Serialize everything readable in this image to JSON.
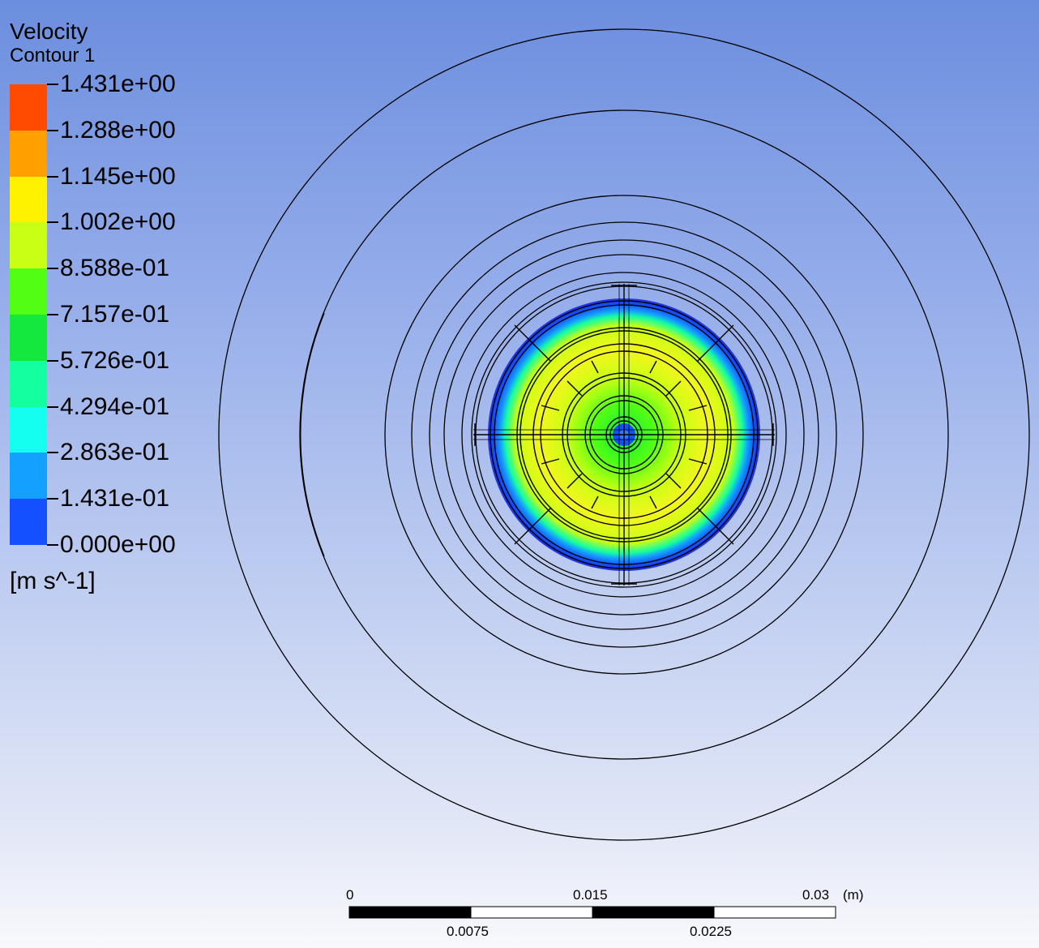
{
  "legend": {
    "title": "Velocity",
    "subtitle": "Contour 1",
    "unit": "[m s^-1]",
    "labels": [
      "1.431e+00",
      "1.288e+00",
      "1.145e+00",
      "1.002e+00",
      "8.588e-01",
      "7.157e-01",
      "5.726e-01",
      "4.294e-01",
      "2.863e-01",
      "1.431e-01",
      "0.000e+00"
    ],
    "colors": [
      "#ff4a00",
      "#ffa000",
      "#fff200",
      "#c8ff14",
      "#50ff14",
      "#14e83c",
      "#14ffa0",
      "#14fff0",
      "#14a0ff",
      "#1450ff"
    ]
  },
  "contour": {
    "field": "Velocity",
    "min": 0.0,
    "max": 1.431,
    "units": "m s^-1"
  },
  "scale_bar": {
    "top_labels": [
      "0",
      "0.015",
      "0.03",
      "(m)"
    ],
    "bottom_labels": [
      "0.0075",
      "0.0225"
    ]
  }
}
